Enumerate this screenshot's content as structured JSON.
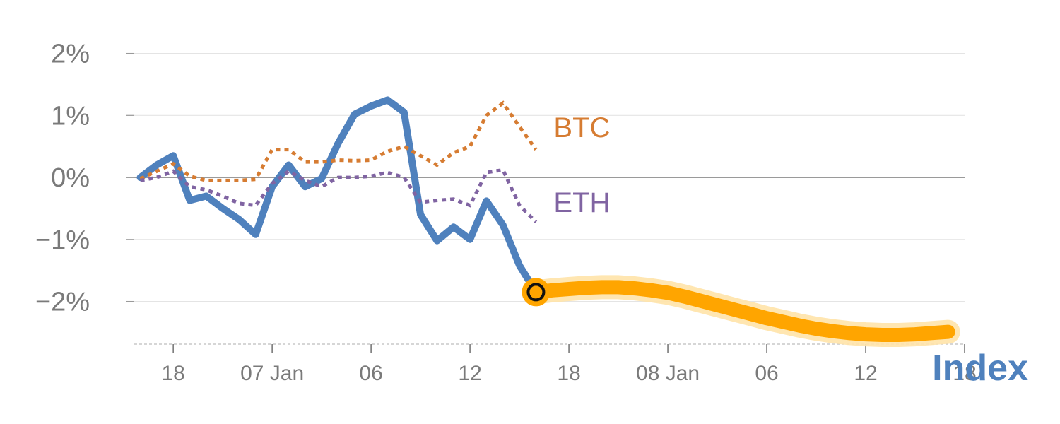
{
  "chart_data": {
    "type": "line",
    "title": "",
    "xlabel": "",
    "ylabel": "",
    "corner_label": "Index",
    "y_ticks": [
      {
        "value": 2,
        "label": "2%"
      },
      {
        "value": 1,
        "label": "1%"
      },
      {
        "value": 0,
        "label": "0%"
      },
      {
        "value": -1,
        "label": "−1%"
      },
      {
        "value": -2,
        "label": "−2%"
      }
    ],
    "ylim": [
      -2.7,
      2.2
    ],
    "x_ticks": [
      {
        "index": 2,
        "label": "18"
      },
      {
        "index": 8,
        "label": "07 Jan"
      },
      {
        "index": 14,
        "label": "06"
      },
      {
        "index": 20,
        "label": "12"
      },
      {
        "index": 26,
        "label": "18"
      },
      {
        "index": 32,
        "label": "08 Jan"
      },
      {
        "index": 38,
        "label": "06"
      },
      {
        "index": 44,
        "label": "12"
      },
      {
        "index": 50,
        "label": "18"
      }
    ],
    "xlim": [
      -0.15,
      50
    ],
    "grid": true,
    "series": [
      {
        "name": "",
        "style": "solid",
        "color": "#4f81bd",
        "x": [
          0,
          1,
          2,
          3,
          4,
          5,
          6,
          7,
          8,
          9,
          10,
          11,
          12,
          13,
          14,
          15,
          16,
          17,
          18,
          19,
          20,
          21,
          22,
          23,
          24
        ],
        "values": [
          0.0,
          0.2,
          0.35,
          -0.37,
          -0.3,
          -0.5,
          -0.68,
          -0.92,
          -0.15,
          0.2,
          -0.15,
          -0.02,
          0.55,
          1.02,
          1.15,
          1.25,
          1.05,
          -0.6,
          -1.02,
          -0.8,
          -1.0,
          -0.38,
          -0.77,
          -1.42,
          -1.85
        ]
      },
      {
        "name": "BTC",
        "style": "dotted",
        "color": "#d67c32",
        "x": [
          0,
          1,
          2,
          3,
          4,
          5,
          6,
          7,
          8,
          9,
          10,
          11,
          12,
          13,
          14,
          15,
          16,
          17,
          18,
          19,
          20,
          21,
          22,
          23,
          24
        ],
        "values": [
          -0.02,
          0.1,
          0.22,
          0.02,
          -0.05,
          -0.05,
          -0.05,
          -0.03,
          0.45,
          0.45,
          0.25,
          0.25,
          0.28,
          0.27,
          0.28,
          0.42,
          0.5,
          0.35,
          0.2,
          0.4,
          0.5,
          1.0,
          1.2,
          0.82,
          0.45
        ]
      },
      {
        "name": "ETH",
        "style": "dotted",
        "color": "#8064a2",
        "x": [
          0,
          1,
          2,
          3,
          4,
          5,
          6,
          7,
          8,
          9,
          10,
          11,
          12,
          13,
          14,
          15,
          16,
          17,
          18,
          19,
          20,
          21,
          22,
          23,
          24
        ],
        "values": [
          -0.05,
          0.0,
          0.1,
          -0.15,
          -0.2,
          -0.3,
          -0.42,
          -0.45,
          -0.1,
          0.1,
          -0.05,
          -0.15,
          0.0,
          0.0,
          0.02,
          0.08,
          0.0,
          -0.4,
          -0.37,
          -0.35,
          -0.45,
          0.08,
          0.12,
          -0.45,
          -0.72
        ]
      },
      {
        "name": "",
        "style": "forecast",
        "color": "#ffa500",
        "x": [
          24,
          25,
          26,
          27,
          28,
          29,
          30,
          31,
          32,
          33,
          34,
          35,
          36,
          37,
          38,
          39,
          40,
          41,
          42,
          43,
          44,
          45,
          46,
          47,
          48,
          49
        ],
        "values": [
          -1.85,
          -1.82,
          -1.8,
          -1.78,
          -1.77,
          -1.77,
          -1.79,
          -1.82,
          -1.86,
          -1.92,
          -1.99,
          -2.06,
          -2.13,
          -2.2,
          -2.27,
          -2.33,
          -2.39,
          -2.44,
          -2.48,
          -2.51,
          -2.53,
          -2.54,
          -2.54,
          -2.53,
          -2.51,
          -2.49
        ]
      }
    ],
    "marker": {
      "x": 24,
      "y": -1.85
    }
  }
}
